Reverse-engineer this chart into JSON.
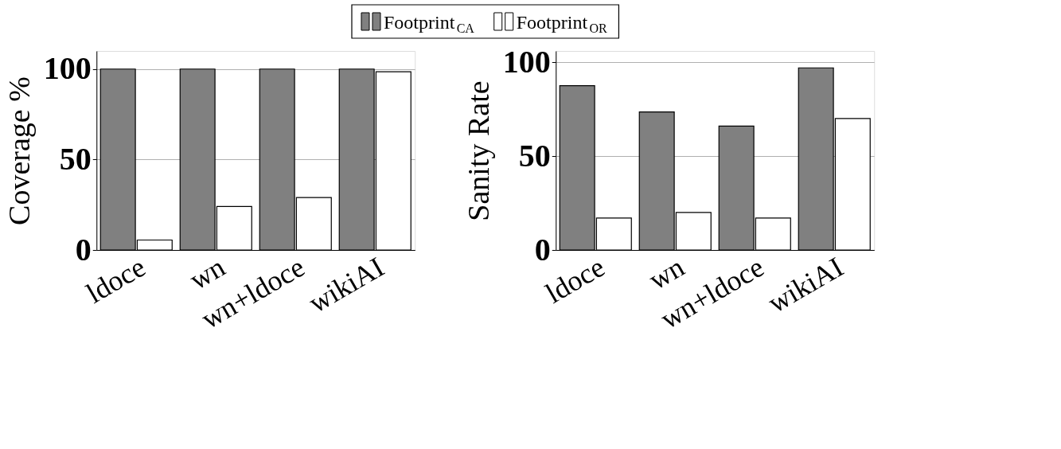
{
  "chart_data": [
    {
      "type": "bar",
      "ylabel": "Coverage %",
      "categories": [
        "ldoce",
        "wn",
        "wn+ldoce",
        "wikiAI"
      ],
      "series": [
        {
          "name": "Footprint$_{CA}$",
          "color": "#808080",
          "values": [
            100,
            100,
            100,
            100
          ]
        },
        {
          "name": "Footprint$_{OR}$",
          "color": "#ffffff",
          "values": [
            5.5,
            24,
            29,
            98.5
          ]
        }
      ],
      "ylim": [
        0,
        110
      ],
      "yticks": [
        0,
        50,
        100
      ],
      "grid": "y",
      "legend": "top"
    },
    {
      "type": "bar",
      "ylabel": "Sanity Rate",
      "categories": [
        "ldoce",
        "wn",
        "wn+ldoce",
        "wikiAI"
      ],
      "series": [
        {
          "name": "Footprint$_{CA}$",
          "color": "#808080",
          "values": [
            87.5,
            73.5,
            66,
            97
          ]
        },
        {
          "name": "Footprint$_{OR}$",
          "color": "#ffffff",
          "values": [
            17,
            20,
            17,
            70
          ]
        }
      ],
      "ylim": [
        0,
        106
      ],
      "yticks": [
        0,
        50,
        100
      ],
      "grid": "y"
    }
  ]
}
